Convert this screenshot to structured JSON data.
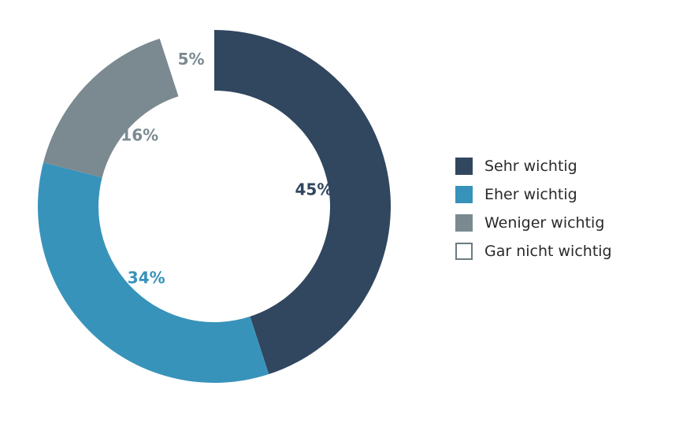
{
  "chart_data": {
    "type": "pie",
    "donut": true,
    "title": "",
    "series": [
      {
        "name": "Sehr wichtig",
        "value": 45,
        "label": "45%",
        "color": "#31465f"
      },
      {
        "name": "Eher wichtig",
        "value": 34,
        "label": "34%",
        "color": "#3893bb"
      },
      {
        "name": "Weniger wichtig",
        "value": 16,
        "label": "16%",
        "color": "#7b8a90"
      },
      {
        "name": "Gar nicht wichtig",
        "value": 5,
        "label": "5%",
        "color": "#ffffff"
      }
    ],
    "legend_position": "right"
  },
  "legend": {
    "items": [
      {
        "label": "Sehr wichtig"
      },
      {
        "label": "Eher wichtig"
      },
      {
        "label": "Weniger wichtig"
      },
      {
        "label": "Gar nicht wichtig"
      }
    ]
  }
}
